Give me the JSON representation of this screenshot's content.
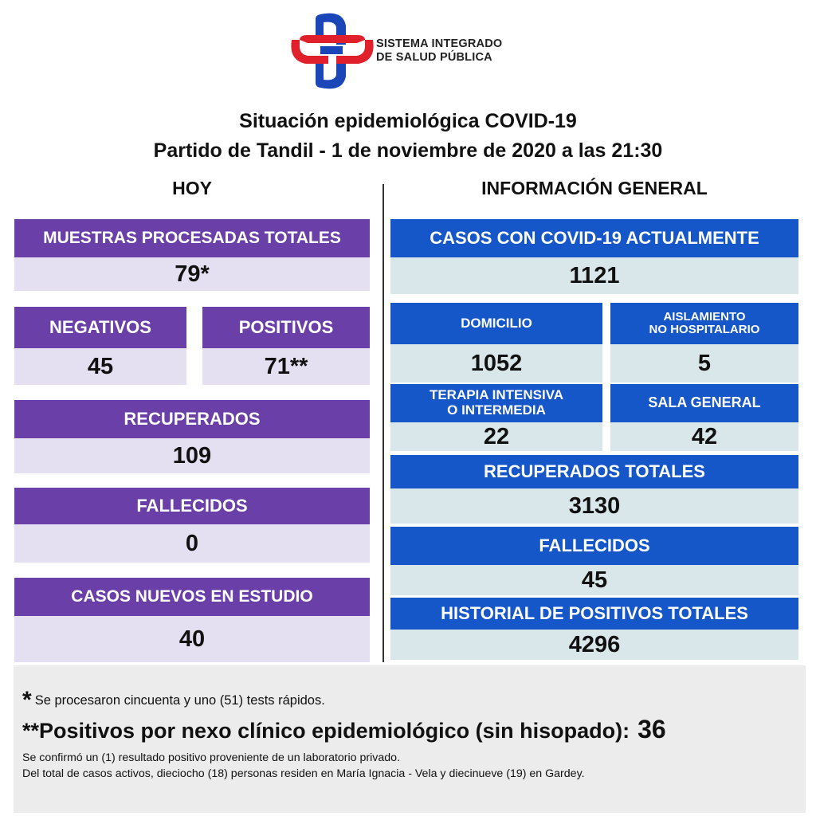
{
  "org": {
    "line1": "SISTEMA INTEGRADO",
    "line2": "DE SALUD PÚBLICA"
  },
  "title": {
    "line1": "Situación epidemiológica COVID-19",
    "line2": "Partido de Tandil - 1 de noviembre de 2020 a las 21:30"
  },
  "hoy": {
    "heading": "HOY",
    "muestras": {
      "label": "MUESTRAS PROCESADAS TOTALES",
      "value": "79*"
    },
    "negativos": {
      "label": "NEGATIVOS",
      "value": "45"
    },
    "positivos": {
      "label": "POSITIVOS",
      "value": "71**"
    },
    "recuperados": {
      "label": "RECUPERADOS",
      "value": "109"
    },
    "fallecidos": {
      "label": "FALLECIDOS",
      "value": "0"
    },
    "nuevos": {
      "label": "CASOS NUEVOS EN ESTUDIO",
      "value": "40"
    }
  },
  "general": {
    "heading": "INFORMACIÓN GENERAL",
    "actuales": {
      "label": "CASOS CON COVID-19 ACTUALMENTE",
      "value": "1121"
    },
    "domicilio": {
      "label": "DOMICILIO",
      "value": "1052"
    },
    "aislamiento": {
      "label1": "AISLAMIENTO",
      "label2": "NO HOSPITALARIO",
      "value": "5"
    },
    "terapia": {
      "label1": "TERAPIA INTENSIVA",
      "label2": "O INTERMEDIA",
      "value": "22"
    },
    "sala": {
      "label": "SALA GENERAL",
      "value": "42"
    },
    "recuperados": {
      "label": "RECUPERADOS TOTALES",
      "value": "3130"
    },
    "fallecidos": {
      "label": "FALLECIDOS",
      "value": "45"
    },
    "historial": {
      "label": "HISTORIAL DE POSITIVOS TOTALES",
      "value": "4296"
    }
  },
  "notes": {
    "star1": "*",
    "note1": "Se procesaron cincuenta y uno  (51) tests rápidos.",
    "note2": "**Positivos por nexo clínico epidemiológico (sin hisopado):",
    "note2_value": "36",
    "note3": "Se confirmó un (1) resultado positivo proveniente de un laboratorio privado.",
    "note4": "Del total de casos activos, dieciocho (18) personas residen en María Ignacia - Vela y diecinueve (19) en Gardey."
  },
  "colors": {
    "purple_header": "#6a40a8",
    "purple_value": "#e4dff1",
    "blue_header": "#1556c9",
    "blue_value": "#d9e6ea",
    "logo_red": "#e0202a",
    "logo_blue": "#1a46b8"
  }
}
